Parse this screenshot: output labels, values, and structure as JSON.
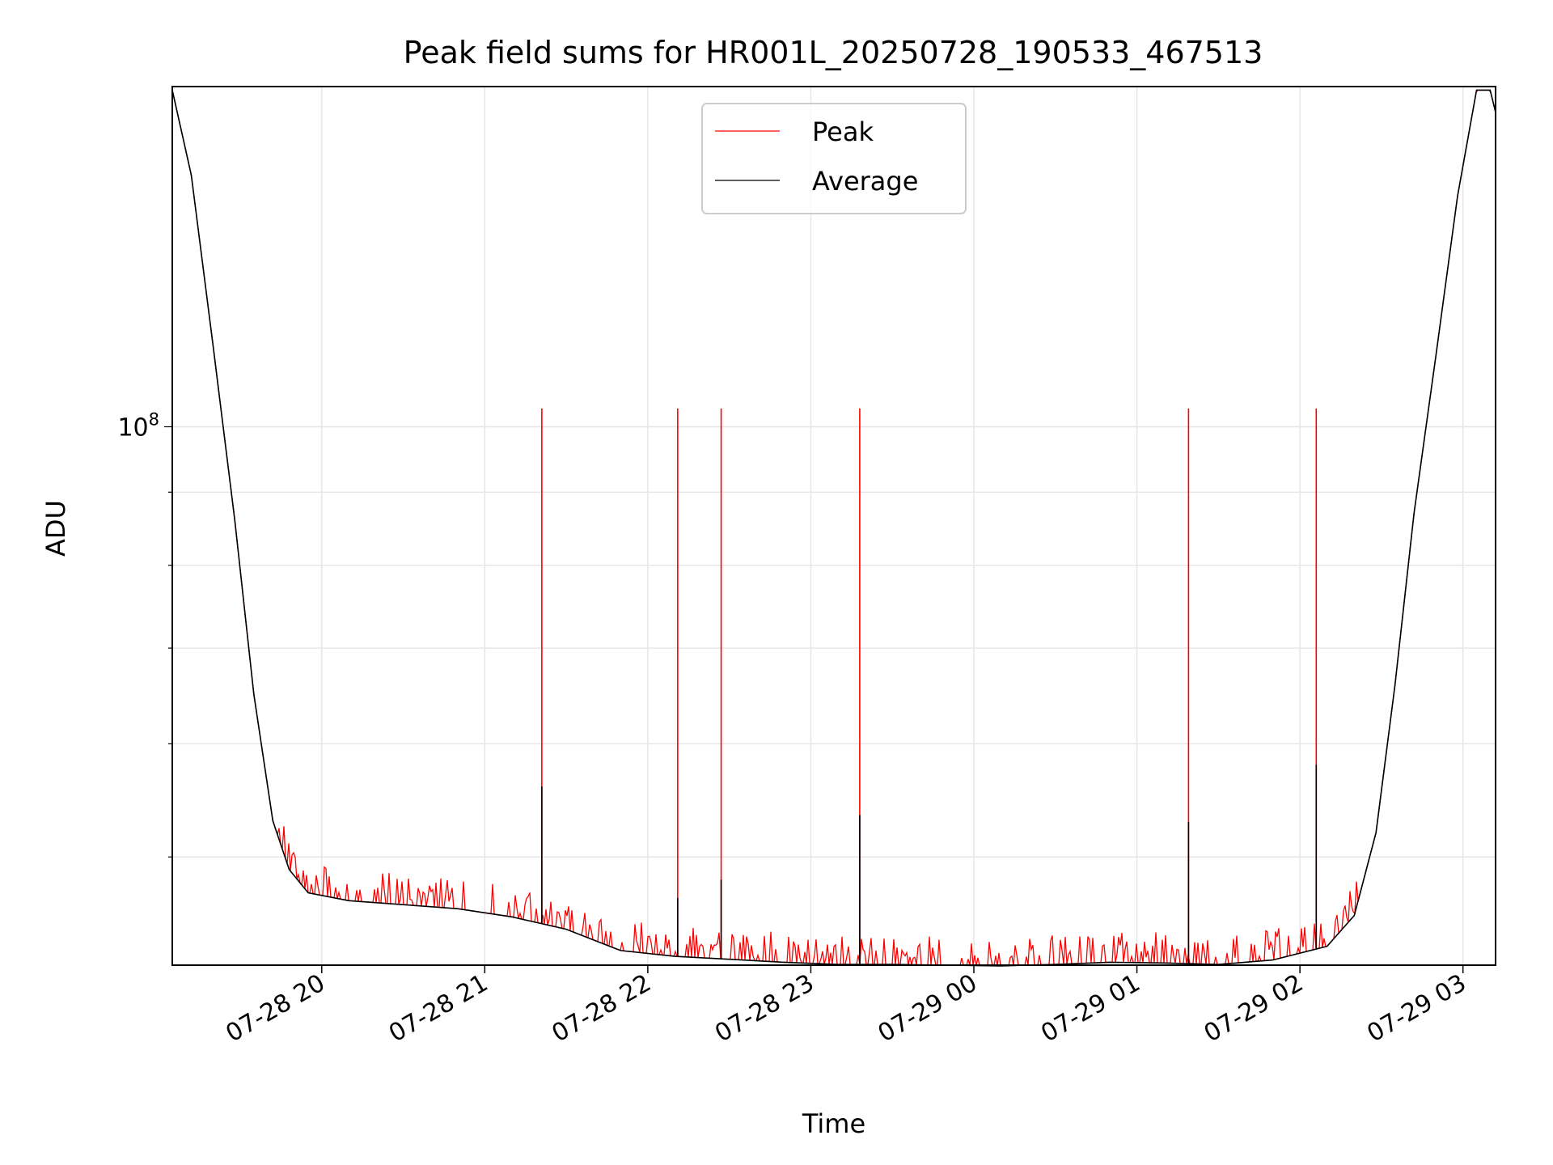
{
  "chart_data": {
    "type": "line",
    "title": "Peak field sums for HR001L_20250728_190533_467513",
    "xlabel": "Time",
    "ylabel": "ADU",
    "yscale": "log",
    "xlim": [
      "2025-07-28 19:05",
      "2025-07-29 03:12"
    ],
    "ylim": [
      42000000.0,
      173000000.0
    ],
    "grid": true,
    "legend_position": "top-center",
    "x_tick_labels": [
      "07-28 20",
      "07-28 21",
      "07-28 22",
      "07-28 23",
      "07-29 00",
      "07-29 01",
      "07-29 02",
      "07-29 03"
    ],
    "y_tick_labels": [
      {
        "value": 100000000.0,
        "base": "10",
        "exp": "8"
      }
    ],
    "average_curve": {
      "time": [
        "2025-07-28 19:05",
        "2025-07-28 19:12",
        "2025-07-28 19:20",
        "2025-07-28 19:28",
        "2025-07-28 19:35",
        "2025-07-28 19:42",
        "2025-07-28 19:48",
        "2025-07-28 19:55",
        "2025-07-28 20:10",
        "2025-07-28 20:30",
        "2025-07-28 20:50",
        "2025-07-28 21:10",
        "2025-07-28 21:30",
        "2025-07-28 21:50",
        "2025-07-28 22:10",
        "2025-07-28 22:30",
        "2025-07-28 22:50",
        "2025-07-28 23:10",
        "2025-07-28 23:30",
        "2025-07-28 23:50",
        "2025-07-29 00:10",
        "2025-07-29 00:30",
        "2025-07-29 00:50",
        "2025-07-29 01:10",
        "2025-07-29 01:30",
        "2025-07-29 01:50",
        "2025-07-29 02:10",
        "2025-07-29 02:20",
        "2025-07-29 02:28",
        "2025-07-29 02:35",
        "2025-07-29 02:42",
        "2025-07-29 02:50",
        "2025-07-29 02:58",
        "2025-07-29 03:05",
        "2025-07-29 03:10",
        "2025-07-29 03:12"
      ],
      "adu": [
        172000000,
        150000000,
        114000000,
        86000000,
        65000000,
        53000000,
        49000000,
        47200000,
        46600000,
        46300000,
        46000000,
        45400000,
        44500000,
        43000000,
        42600000,
        42400000,
        42200000,
        42050000,
        42050000,
        42000000,
        41950000,
        42050000,
        42200000,
        42150000,
        42050000,
        42350000,
        43300000,
        45500000,
        52000000,
        66000000,
        87000000,
        112000000,
        145000000,
        172000000,
        172000000,
        166000000
      ]
    },
    "series": [
      {
        "name": "Peak",
        "color": "#ff0000",
        "spike_times": [
          "2025-07-28 21:21",
          "2025-07-28 22:11",
          "2025-07-28 22:27",
          "2025-07-28 23:18",
          "2025-07-29 01:19",
          "2025-07-29 02:06"
        ],
        "spike_adu": [
          103000000,
          103000000,
          103000000,
          103000000,
          103000000,
          103000000
        ]
      },
      {
        "name": "Average",
        "color": "#000000",
        "spike_times": [
          "2025-07-28 21:21",
          "2025-07-28 22:11",
          "2025-07-28 22:27",
          "2025-07-28 23:18",
          "2025-07-29 01:19",
          "2025-07-29 02:06"
        ],
        "spike_adu": [
          56000000,
          46800000,
          48200000,
          53500000,
          52900000,
          58000000
        ]
      }
    ]
  }
}
